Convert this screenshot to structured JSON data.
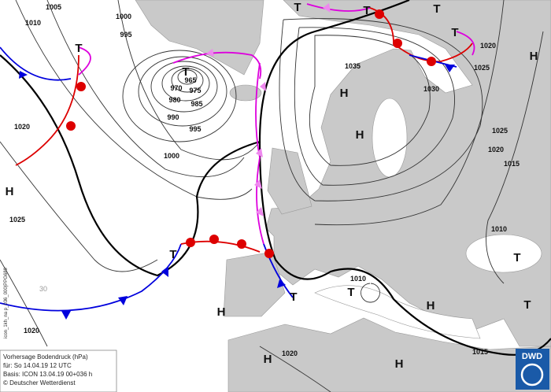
{
  "isobar_labels": [
    "1005",
    "1010",
    "1000",
    "995",
    "965",
    "970",
    "975",
    "980",
    "985",
    "990",
    "995",
    "1000",
    "1020",
    "1025",
    "1020",
    "1035",
    "1030",
    "1025",
    "1020",
    "1025",
    "1020",
    "1015",
    "1010",
    "1010",
    "1020",
    "1015",
    "30"
  ],
  "centers": [
    "T",
    "T",
    "T",
    "T",
    "T",
    "T",
    "T",
    "T",
    "T",
    "T",
    "T",
    "H",
    "H",
    "H",
    "H",
    "H",
    "H",
    "H",
    "H"
  ],
  "info": {
    "line1": "Vorhersage Bodendruck (hPa)",
    "line2": "für:  So 14.04.19  12 UTC",
    "line3": "Basis: ICON  13.04.19 00+036 h",
    "line4": "© Deutscher Wetterdienst"
  },
  "side_text": "icon_1kh_na p_036_000|PPG689",
  "logo": "DWD"
}
